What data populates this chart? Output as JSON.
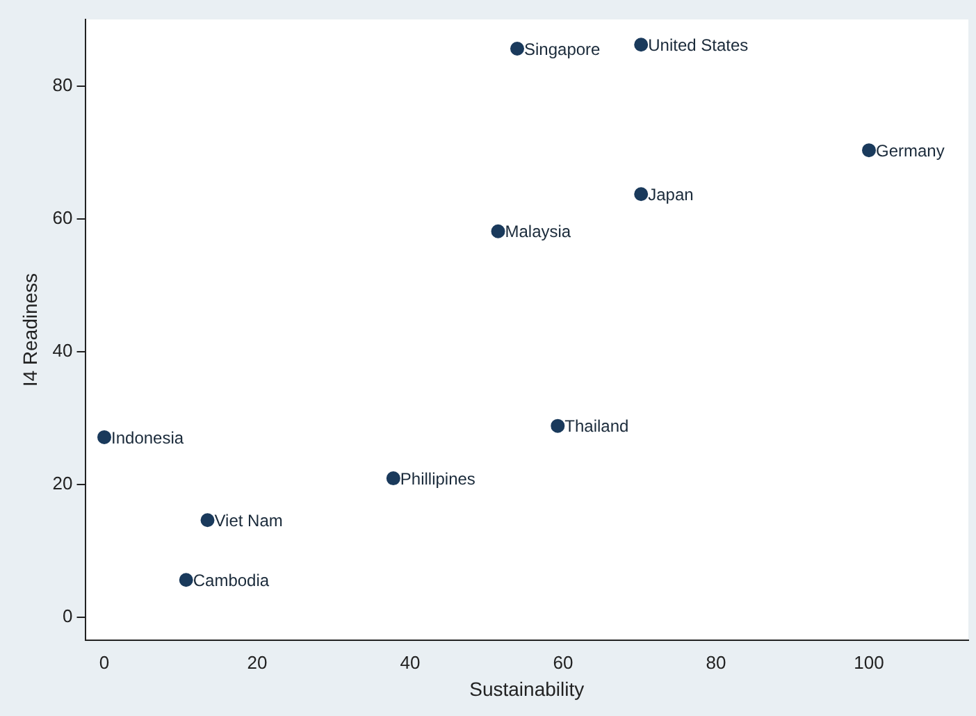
{
  "chart_data": {
    "type": "scatter",
    "xlabel": "Sustainability",
    "ylabel": "I4 Readiness",
    "x": [
      54,
      70.2,
      100,
      70.2,
      51.5,
      59.3,
      0,
      37.8,
      13.5,
      10.7
    ],
    "values": [
      85.6,
      86.2,
      70.3,
      63.7,
      58.1,
      28.8,
      27.1,
      20.9,
      14.6,
      5.6
    ],
    "color": "#1a3a5c",
    "marker": "circle",
    "grid": false,
    "xlim": [
      -2.5,
      113
    ],
    "ylim": [
      -3.5,
      90
    ],
    "xticks": [
      0,
      20,
      40,
      60,
      80,
      100
    ],
    "yticks": [
      0,
      20,
      40,
      60,
      80
    ],
    "annotations": [
      {
        "text": "Singapore",
        "x": 54,
        "y": 85.6
      },
      {
        "text": "United States",
        "x": 70.2,
        "y": 86.2
      },
      {
        "text": "Germany",
        "x": 100,
        "y": 70.3
      },
      {
        "text": "Japan",
        "x": 70.2,
        "y": 63.7
      },
      {
        "text": "Malaysia",
        "x": 51.5,
        "y": 58.1
      },
      {
        "text": "Thailand",
        "x": 59.3,
        "y": 28.8
      },
      {
        "text": "Indonesia",
        "x": 0,
        "y": 27.1
      },
      {
        "text": "Phillipines",
        "x": 37.8,
        "y": 20.9
      },
      {
        "text": "Viet Nam",
        "x": 13.5,
        "y": 14.6
      },
      {
        "text": "Cambodia",
        "x": 10.7,
        "y": 5.6
      }
    ]
  }
}
